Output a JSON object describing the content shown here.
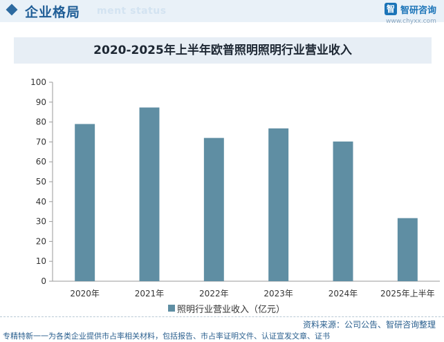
{
  "header": {
    "section_title": "企业格局",
    "section_title_en": "ment status",
    "logo_name": "智研咨询",
    "logo_mark": "智",
    "logo_url": "www.chyxx.com"
  },
  "colors": {
    "bar": "#5f8ea3",
    "header_band": "#e9f1f8",
    "title_band": "#e7eef5",
    "accent": "#1f5d96"
  },
  "chart_data": {
    "type": "bar",
    "title": "2020-2025年上半年欧普照明照明行业营业收入",
    "categories": [
      "2020年",
      "2021年",
      "2022年",
      "2023年",
      "2024年",
      "2025年上半年"
    ],
    "series": [
      {
        "name": "照明行业营业收入（亿元）",
        "values": [
          79,
          87.3,
          72,
          76.8,
          70.2,
          31.7
        ]
      }
    ],
    "xlabel": "",
    "ylabel": "",
    "ylim": [
      0,
      100
    ],
    "yticks": [
      0,
      10,
      20,
      30,
      40,
      50,
      60,
      70,
      80,
      90,
      100
    ],
    "grid": false,
    "legend_position": "bottom"
  },
  "footer": {
    "source": "资料来源：公司公告、智研咨询整理",
    "tagline": "专精特新一一为各类企业提供市占率相关材料，包括报告、市占率证明文件、认证宣发文章、证书"
  }
}
